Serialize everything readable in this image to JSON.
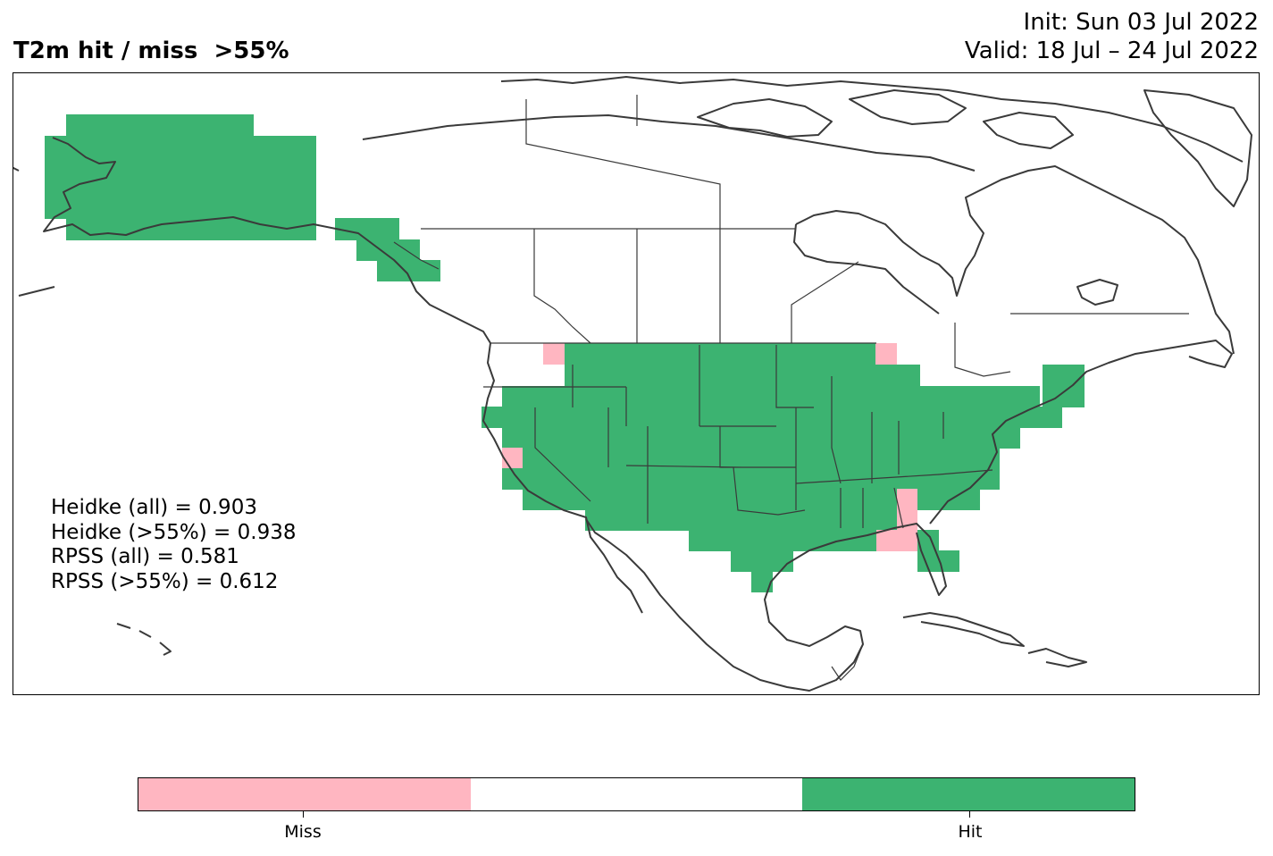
{
  "title": "T2m hit / miss  >55%",
  "init": "Init: Sun 03 Jul 2022",
  "valid": "Valid: 18 Jul – 24 Jul 2022",
  "scores": [
    "Heidke (all) = 0.903",
    "Heidke (>55%) = 0.938",
    "RPSS (all) = 0.581",
    "RPSS (>55%) = 0.612"
  ],
  "colors": {
    "miss": "#ffb6c1",
    "neutral": "#ffffff",
    "hit": "#3cb371",
    "coast": "#3a3a3a"
  },
  "legend": {
    "categories": [
      "Miss",
      "",
      "Hit"
    ],
    "tick_labels": [
      "Miss",
      "Hit"
    ]
  }
}
